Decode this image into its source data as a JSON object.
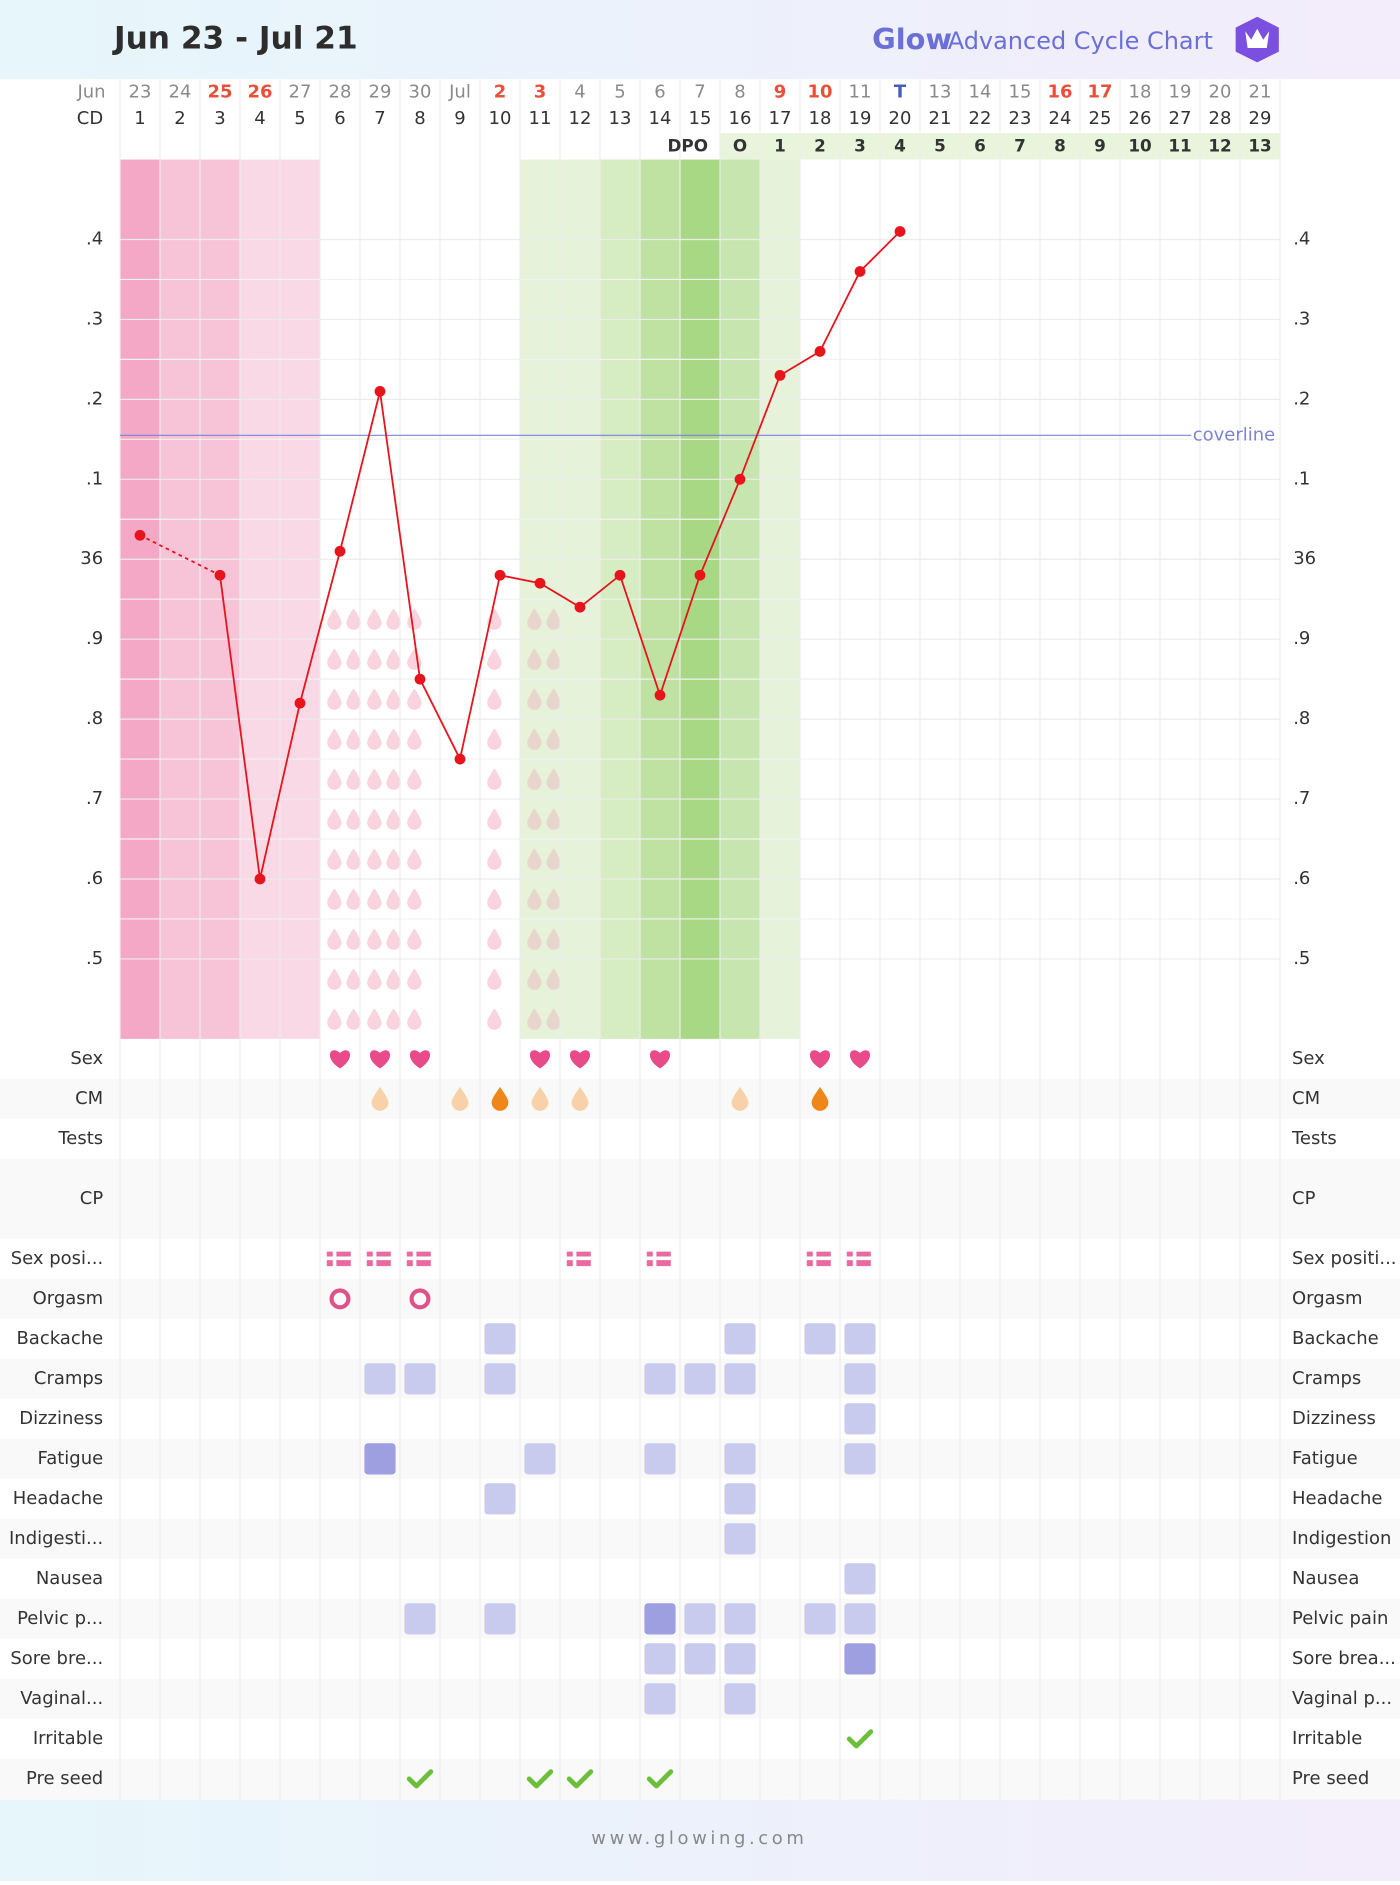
{
  "header": {
    "title": "Jun 23 - Jul 21",
    "brand": "Glow",
    "brand_subtitle": "Advanced Cycle Chart"
  },
  "chart_data": {
    "type": "line",
    "month_label": "Jun",
    "categories": [
      "23",
      "24",
      "25",
      "26",
      "27",
      "28",
      "29",
      "30",
      "Jul",
      "2",
      "3",
      "4",
      "5",
      "6",
      "7",
      "8",
      "9",
      "10",
      "11",
      "T",
      "13",
      "14",
      "15",
      "16",
      "17",
      "18",
      "19",
      "20",
      "21"
    ],
    "category_colors": [
      "#8a8a8a",
      "#8a8a8a",
      "#e8503a",
      "#e8503a",
      "#8a8a8a",
      "#8a8a8a",
      "#8a8a8a",
      "#8a8a8a",
      "#8a8a8a",
      "#e8503a",
      "#e8503a",
      "#8a8a8a",
      "#8a8a8a",
      "#8a8a8a",
      "#8a8a8a",
      "#8a8a8a",
      "#e8503a",
      "#e8503a",
      "#8a8a8a",
      "#4a5bbf",
      "#8a8a8a",
      "#8a8a8a",
      "#8a8a8a",
      "#e8503a",
      "#e8503a",
      "#8a8a8a",
      "#8a8a8a",
      "#8a8a8a",
      "#8a8a8a"
    ],
    "cd_label": "CD",
    "cd": [
      "1",
      "2",
      "3",
      "4",
      "5",
      "6",
      "7",
      "8",
      "9",
      "10",
      "11",
      "12",
      "13",
      "14",
      "15",
      "16",
      "17",
      "18",
      "19",
      "20",
      "21",
      "22",
      "23",
      "24",
      "25",
      "26",
      "27",
      "28",
      "29"
    ],
    "dpo_label": "DPO",
    "dpo": [
      null,
      null,
      null,
      null,
      null,
      null,
      null,
      null,
      null,
      null,
      null,
      null,
      null,
      null,
      null,
      "O",
      "1",
      "2",
      "3",
      "4",
      "5",
      "6",
      "7",
      "8",
      "9",
      "10",
      "11",
      "12",
      "13"
    ],
    "series": [
      {
        "name": "BBT",
        "color": "#e8141b",
        "values": [
          36.03,
          null,
          35.98,
          35.6,
          35.82,
          36.01,
          36.21,
          35.85,
          35.75,
          35.98,
          35.97,
          35.94,
          35.98,
          35.83,
          35.98,
          36.1,
          36.23,
          36.26,
          36.36,
          36.41,
          null,
          null,
          null,
          null,
          null,
          null,
          null,
          null,
          null
        ]
      }
    ],
    "coverline": {
      "label": "coverline",
      "value": 36.155,
      "color": "#7b83d6"
    },
    "ylim": [
      35.4,
      36.5
    ],
    "yticks": [
      {
        "value": 36.4,
        "label": ".4"
      },
      {
        "value": 36.3,
        "label": ".3"
      },
      {
        "value": 36.2,
        "label": ".2"
      },
      {
        "value": 36.1,
        "label": ".1"
      },
      36,
      {
        "value": 35.9,
        "label": ".9"
      },
      {
        "value": 35.8,
        "label": ".8"
      },
      {
        "value": 35.7,
        "label": ".7"
      },
      {
        "value": 35.6,
        "label": ".6"
      },
      {
        "value": 35.5,
        "label": ".5"
      }
    ],
    "grid": true
  },
  "symptoms": {
    "rows": [
      {
        "label": "Sex",
        "right_label": "Sex",
        "type": "heart",
        "values": [
          null,
          null,
          null,
          null,
          null,
          1,
          1,
          1,
          null,
          null,
          1,
          1,
          null,
          1,
          null,
          null,
          null,
          1,
          1,
          null,
          null,
          null,
          null,
          null,
          null,
          null,
          null,
          null,
          null
        ]
      },
      {
        "label": "CM",
        "right_label": "CM",
        "type": "drop",
        "values": [
          null,
          null,
          null,
          null,
          null,
          null,
          1,
          null,
          1,
          2,
          1,
          1,
          null,
          null,
          null,
          1,
          null,
          2,
          null,
          null,
          null,
          null,
          null,
          null,
          null,
          null,
          null,
          null,
          null
        ]
      },
      {
        "label": "Tests",
        "right_label": "Tests",
        "type": "square",
        "values": [
          null,
          null,
          null,
          null,
          null,
          null,
          null,
          null,
          null,
          null,
          null,
          null,
          null,
          null,
          null,
          null,
          null,
          null,
          null,
          null,
          null,
          null,
          null,
          null,
          null,
          null,
          null,
          null,
          null
        ]
      },
      {
        "label": "CP",
        "right_label": "CP",
        "type": "square",
        "values": [
          null,
          null,
          null,
          null,
          null,
          null,
          null,
          null,
          null,
          null,
          null,
          null,
          null,
          null,
          null,
          null,
          null,
          null,
          null,
          null,
          null,
          null,
          null,
          null,
          null,
          null,
          null,
          null,
          null
        ]
      },
      {
        "label": "Sex posi...",
        "right_label": "Sex positi...",
        "type": "position",
        "values": [
          null,
          null,
          null,
          null,
          null,
          1,
          1,
          1,
          null,
          null,
          null,
          1,
          null,
          1,
          null,
          null,
          null,
          1,
          1,
          null,
          null,
          null,
          null,
          null,
          null,
          null,
          null,
          null,
          null
        ]
      },
      {
        "label": "Orgasm",
        "right_label": "Orgasm",
        "type": "orgasm",
        "values": [
          null,
          null,
          null,
          null,
          null,
          1,
          null,
          1,
          null,
          null,
          null,
          null,
          null,
          null,
          null,
          null,
          null,
          null,
          null,
          null,
          null,
          null,
          null,
          null,
          null,
          null,
          null,
          null,
          null
        ]
      },
      {
        "label": "Backache",
        "right_label": "Backache",
        "type": "square",
        "values": [
          null,
          null,
          null,
          null,
          null,
          null,
          null,
          null,
          null,
          1,
          null,
          null,
          null,
          null,
          null,
          1,
          null,
          1,
          1,
          null,
          null,
          null,
          null,
          null,
          null,
          null,
          null,
          null,
          null
        ]
      },
      {
        "label": "Cramps",
        "right_label": "Cramps",
        "type": "square",
        "values": [
          null,
          null,
          null,
          null,
          null,
          null,
          1,
          1,
          null,
          1,
          null,
          null,
          null,
          1,
          1,
          1,
          null,
          null,
          1,
          null,
          null,
          null,
          null,
          null,
          null,
          null,
          null,
          null,
          null
        ]
      },
      {
        "label": "Dizziness",
        "right_label": "Dizziness",
        "type": "square",
        "values": [
          null,
          null,
          null,
          null,
          null,
          null,
          null,
          null,
          null,
          null,
          null,
          null,
          null,
          null,
          null,
          null,
          null,
          null,
          1,
          null,
          null,
          null,
          null,
          null,
          null,
          null,
          null,
          null,
          null
        ]
      },
      {
        "label": "Fatigue",
        "right_label": "Fatigue",
        "type": "square",
        "values": [
          null,
          null,
          null,
          null,
          null,
          null,
          2,
          null,
          null,
          null,
          1,
          null,
          null,
          1,
          null,
          1,
          null,
          null,
          1,
          null,
          null,
          null,
          null,
          null,
          null,
          null,
          null,
          null,
          null
        ]
      },
      {
        "label": "Headache",
        "right_label": "Headache",
        "type": "square",
        "values": [
          null,
          null,
          null,
          null,
          null,
          null,
          null,
          null,
          null,
          1,
          null,
          null,
          null,
          null,
          null,
          1,
          null,
          null,
          null,
          null,
          null,
          null,
          null,
          null,
          null,
          null,
          null,
          null,
          null
        ]
      },
      {
        "label": "Indigesti...",
        "right_label": "Indigestion",
        "type": "square",
        "values": [
          null,
          null,
          null,
          null,
          null,
          null,
          null,
          null,
          null,
          null,
          null,
          null,
          null,
          null,
          null,
          1,
          null,
          null,
          null,
          null,
          null,
          null,
          null,
          null,
          null,
          null,
          null,
          null,
          null
        ]
      },
      {
        "label": "Nausea",
        "right_label": "Nausea",
        "type": "square",
        "values": [
          null,
          null,
          null,
          null,
          null,
          null,
          null,
          null,
          null,
          null,
          null,
          null,
          null,
          null,
          null,
          null,
          null,
          null,
          1,
          null,
          null,
          null,
          null,
          null,
          null,
          null,
          null,
          null,
          null
        ]
      },
      {
        "label": "Pelvic p...",
        "right_label": "Pelvic pain",
        "type": "square",
        "values": [
          null,
          null,
          null,
          null,
          null,
          null,
          null,
          1,
          null,
          1,
          null,
          null,
          null,
          2,
          1,
          1,
          null,
          1,
          1,
          null,
          null,
          null,
          null,
          null,
          null,
          null,
          null,
          null,
          null
        ]
      },
      {
        "label": "Sore bre...",
        "right_label": "Sore brea...",
        "type": "square",
        "values": [
          null,
          null,
          null,
          null,
          null,
          null,
          null,
          null,
          null,
          null,
          null,
          null,
          null,
          1,
          1,
          1,
          null,
          null,
          2,
          null,
          null,
          null,
          null,
          null,
          null,
          null,
          null,
          null,
          null
        ]
      },
      {
        "label": "Vaginal...",
        "right_label": "Vaginal p...",
        "type": "square",
        "values": [
          null,
          null,
          null,
          null,
          null,
          null,
          null,
          null,
          null,
          null,
          null,
          null,
          null,
          1,
          null,
          1,
          null,
          null,
          null,
          null,
          null,
          null,
          null,
          null,
          null,
          null,
          null,
          null,
          null
        ]
      },
      {
        "label": "Irritable",
        "right_label": "Irritable",
        "type": "check",
        "values": [
          null,
          null,
          null,
          null,
          null,
          null,
          null,
          null,
          null,
          null,
          null,
          null,
          null,
          null,
          null,
          null,
          null,
          null,
          1,
          null,
          null,
          null,
          null,
          null,
          null,
          null,
          null,
          null,
          null
        ]
      },
      {
        "label": "Pre seed",
        "right_label": "Pre seed",
        "type": "check",
        "values": [
          null,
          null,
          null,
          null,
          null,
          null,
          null,
          1,
          null,
          null,
          1,
          1,
          null,
          1,
          null,
          null,
          null,
          null,
          null,
          null,
          null,
          null,
          null,
          null,
          null,
          null,
          null,
          null,
          null
        ]
      }
    ]
  },
  "footer": {
    "text": "www.glowing.com"
  }
}
